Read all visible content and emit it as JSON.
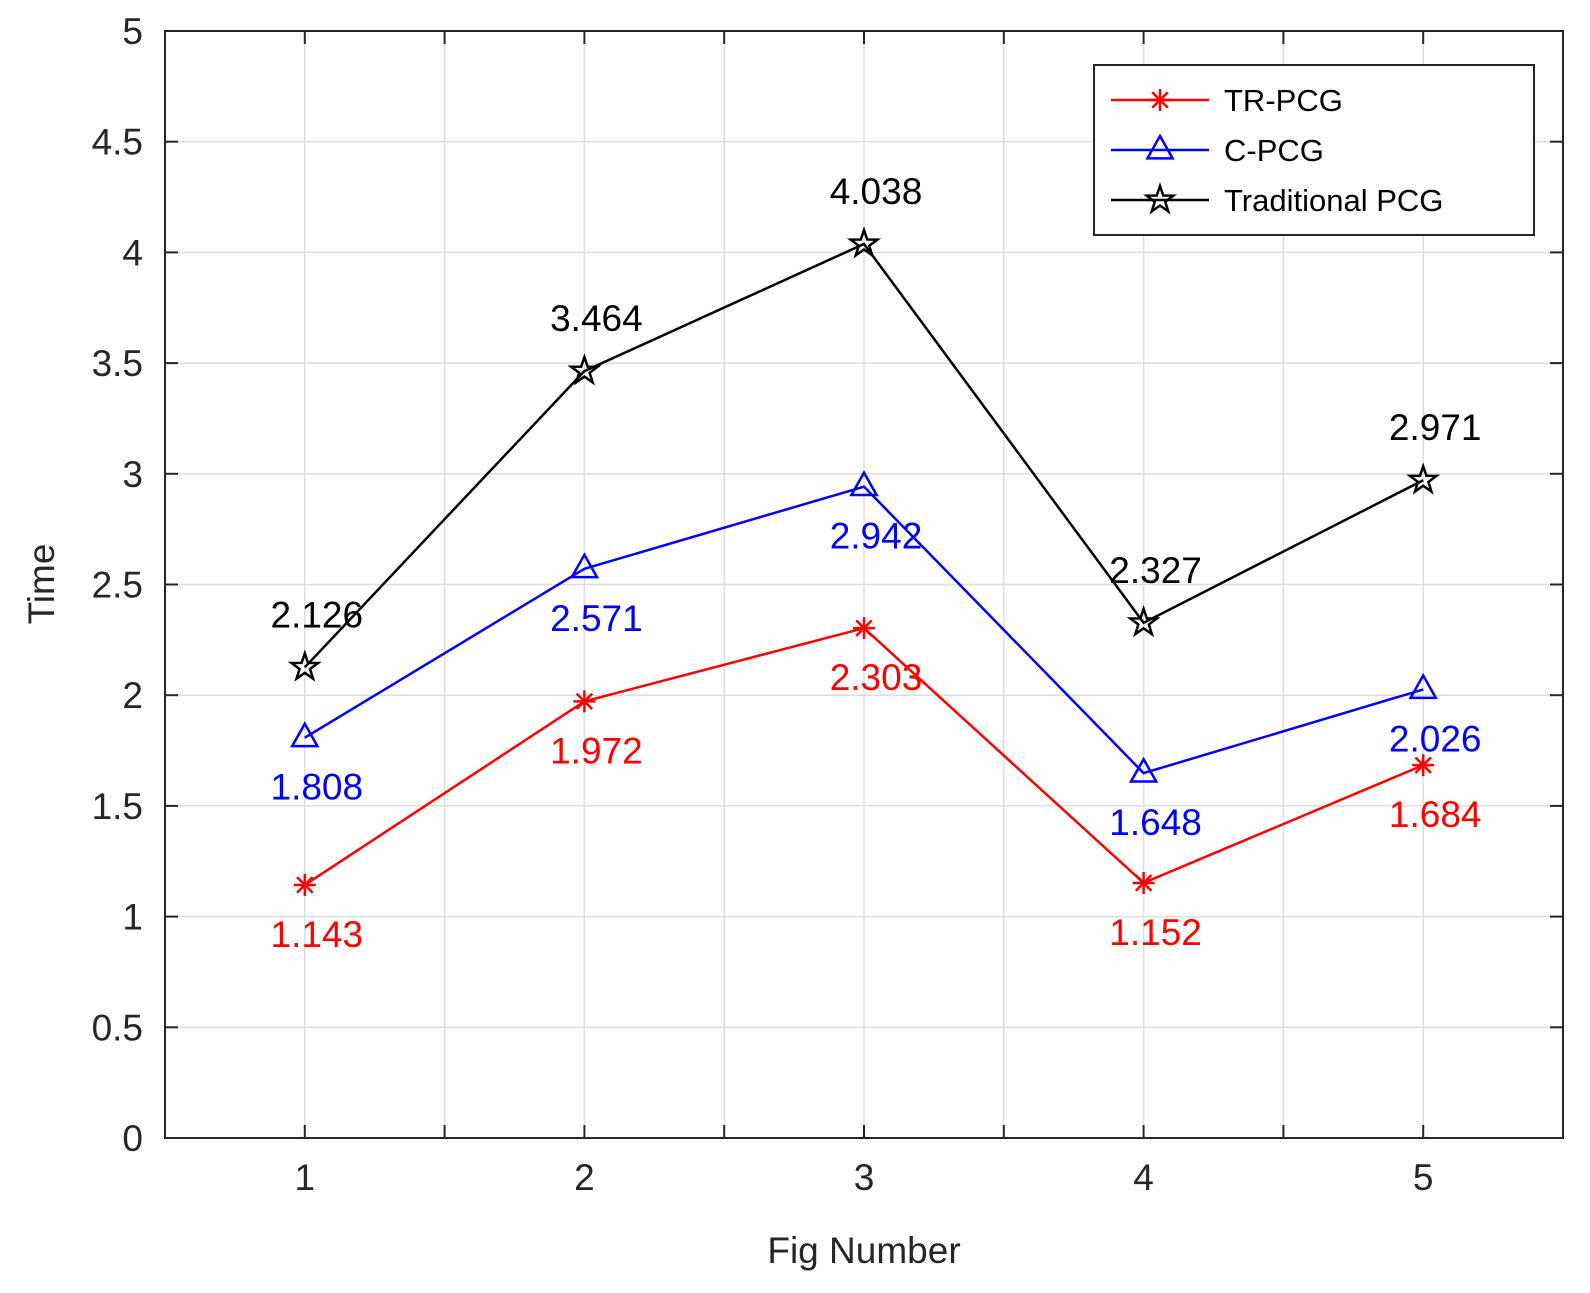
{
  "chart_data": {
    "type": "line",
    "title": "",
    "xlabel": "Fig Number",
    "ylabel": "Time",
    "x": [
      1,
      2,
      3,
      4,
      5
    ],
    "x_tick_labels": [
      "1",
      "2",
      "3",
      "4",
      "5"
    ],
    "xlim": [
      0.5,
      5.5
    ],
    "ylim": [
      0,
      5
    ],
    "y_ticks": [
      0,
      0.5,
      1,
      1.5,
      2,
      2.5,
      3,
      3.5,
      4,
      4.5,
      5
    ],
    "y_tick_labels": [
      "0",
      "0.5",
      "1",
      "1.5",
      "2",
      "2.5",
      "3",
      "3.5",
      "4",
      "4.5",
      "5"
    ],
    "grid": true,
    "legend_position": "top-right",
    "series": [
      {
        "name": "TR-PCG",
        "color": "#ff0000",
        "marker": "asterisk",
        "values": [
          1.143,
          1.972,
          2.303,
          1.152,
          1.684
        ],
        "labels": [
          "1.143",
          "1.972",
          "2.303",
          "1.152",
          "1.684"
        ],
        "label_side": [
          "below",
          "below",
          "below",
          "below",
          "below"
        ]
      },
      {
        "name": "C-PCG",
        "color": "#0000ff",
        "marker": "triangle",
        "values": [
          1.808,
          2.571,
          2.942,
          1.648,
          2.026
        ],
        "labels": [
          "1.808",
          "2.571",
          "2.942",
          "1.648",
          "2.026"
        ],
        "label_side": [
          "below",
          "below",
          "below",
          "below",
          "below"
        ]
      },
      {
        "name": "Traditional PCG",
        "color": "#000000",
        "marker": "star",
        "values": [
          2.126,
          3.464,
          4.038,
          2.327,
          2.971
        ],
        "labels": [
          "2.126",
          "3.464",
          "4.038",
          "2.327",
          "2.971"
        ],
        "label_side": [
          "above",
          "above",
          "above",
          "above",
          "above"
        ]
      }
    ]
  }
}
